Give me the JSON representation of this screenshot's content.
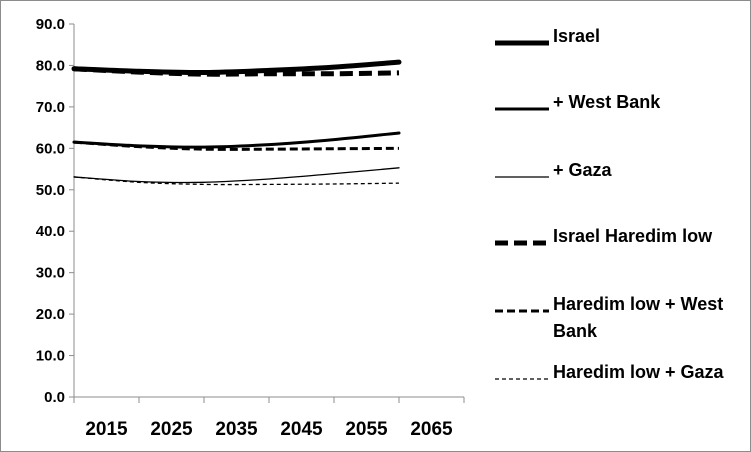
{
  "chart_data": {
    "type": "line",
    "title": "",
    "xlabel": "",
    "ylabel": "",
    "categories": [
      "2015",
      "2025",
      "2035",
      "2045",
      "2055",
      "2065"
    ],
    "x_points": [
      2010,
      2020,
      2030,
      2040,
      2050,
      2060
    ],
    "ylim": [
      0,
      90
    ],
    "yticks": [
      "0.0",
      "10.0",
      "20.0",
      "30.0",
      "40.0",
      "50.0",
      "60.0",
      "70.0",
      "80.0",
      "90.0"
    ],
    "grid": false,
    "legend": "right",
    "series": [
      {
        "name": "Israel",
        "style": "solid",
        "weight": "heavy",
        "values": [
          79.2,
          78.6,
          78.3,
          78.8,
          79.6,
          80.8
        ]
      },
      {
        "name": "+ West Bank",
        "style": "solid",
        "weight": "medium",
        "values": [
          61.5,
          60.6,
          60.3,
          60.9,
          62.1,
          63.7
        ]
      },
      {
        "name": "+ Gaza",
        "style": "solid",
        "weight": "thin",
        "values": [
          53.1,
          52.0,
          51.8,
          52.6,
          53.9,
          55.3
        ]
      },
      {
        "name": "Israel Haredim low",
        "style": "dashed",
        "weight": "heavy",
        "values": [
          79.2,
          78.4,
          77.9,
          78.0,
          78.0,
          78.2
        ]
      },
      {
        "name": "Haredim low + West Bank",
        "style": "dashed",
        "weight": "medium",
        "values": [
          61.5,
          60.4,
          59.8,
          59.8,
          59.9,
          60.0
        ]
      },
      {
        "name": "Haredim low + Gaza",
        "style": "dashed",
        "weight": "thin",
        "values": [
          53.1,
          51.8,
          51.3,
          51.3,
          51.4,
          51.6
        ]
      }
    ]
  }
}
